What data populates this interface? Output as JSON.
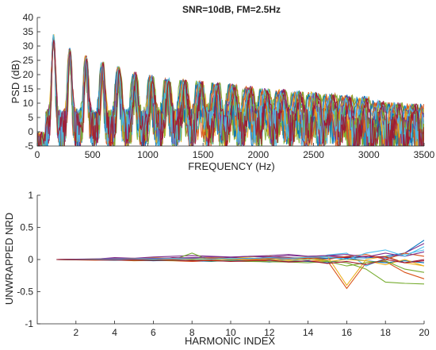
{
  "palette": [
    "#0072BD",
    "#D95319",
    "#EDB120",
    "#7E2F8E",
    "#77AC30",
    "#4DBEEE",
    "#A2142F"
  ],
  "chart_data": [
    {
      "type": "line",
      "title": "SNR=10dB, FM=2.5Hz",
      "xlabel": "FREQUENCY (Hz)",
      "ylabel": "PSD (dB)",
      "xlim": [
        0,
        3500
      ],
      "ylim": [
        -5,
        40
      ],
      "xticks": [
        0,
        500,
        1000,
        1500,
        2000,
        2500,
        3000,
        3500
      ],
      "yticks": [
        -5,
        0,
        5,
        10,
        15,
        20,
        25,
        30,
        35,
        40
      ],
      "grid": false,
      "legend": "none",
      "series_count": 21,
      "harmonic_f0": 147,
      "harmonic_peaks": [
        {
          "x": 147,
          "y": 34.5
        },
        {
          "x": 294,
          "y": 29.5
        },
        {
          "x": 441,
          "y": 27
        },
        {
          "x": 588,
          "y": 24.5
        },
        {
          "x": 735,
          "y": 23
        },
        {
          "x": 882,
          "y": 21
        },
        {
          "x": 1029,
          "y": 20
        },
        {
          "x": 1176,
          "y": 19
        },
        {
          "x": 1323,
          "y": 18.5
        },
        {
          "x": 1470,
          "y": 18
        },
        {
          "x": 1617,
          "y": 17.5
        },
        {
          "x": 1764,
          "y": 17
        },
        {
          "x": 1911,
          "y": 16
        },
        {
          "x": 2058,
          "y": 15.5
        },
        {
          "x": 2205,
          "y": 15
        },
        {
          "x": 2352,
          "y": 14.5
        },
        {
          "x": 2499,
          "y": 14
        },
        {
          "x": 2646,
          "y": 13.5
        },
        {
          "x": 2793,
          "y": 13
        },
        {
          "x": 2940,
          "y": 12.5
        },
        {
          "x": 3087,
          "y": 11
        },
        {
          "x": 3234,
          "y": 10.5
        },
        {
          "x": 3381,
          "y": 10
        }
      ],
      "noise_floor": [
        -5,
        8
      ]
    },
    {
      "type": "line",
      "title": "",
      "xlabel": "HARMONIC INDEX",
      "ylabel": "UNWRAPPED NRD",
      "xlim": [
        0,
        20
      ],
      "ylim": [
        -1,
        1
      ],
      "xticks": [
        2,
        4,
        6,
        8,
        10,
        12,
        14,
        16,
        18,
        20
      ],
      "yticks": [
        -1,
        -0.5,
        0,
        0.5,
        1
      ],
      "grid": false,
      "legend": "none",
      "x": [
        1,
        2,
        3,
        4,
        5,
        6,
        7,
        8,
        9,
        10,
        11,
        12,
        13,
        14,
        15,
        16,
        17,
        18,
        19,
        20
      ],
      "series": [
        {
          "values": [
            0,
            0.003,
            0.008,
            0.01,
            0.015,
            0.02,
            0.018,
            0.025,
            0.02,
            0.015,
            0.02,
            0.01,
            0.02,
            0.015,
            0.02,
            0.03,
            0.025,
            0.05,
            0.1,
            0.3
          ]
        },
        {
          "values": [
            0,
            -0.005,
            -0.01,
            -0.008,
            -0.02,
            -0.015,
            -0.02,
            -0.03,
            -0.02,
            -0.025,
            -0.03,
            -0.02,
            -0.03,
            -0.025,
            -0.02,
            -0.45,
            -0.05,
            -0.03,
            -0.2,
            -0.3
          ]
        },
        {
          "values": [
            0,
            0.002,
            0.01,
            0.02,
            0.01,
            0.03,
            0.02,
            0.01,
            0.03,
            0.02,
            0.04,
            0.05,
            0.02,
            0.04,
            0.05,
            -0.4,
            0.0,
            0.05,
            -0.05,
            -0.1
          ]
        },
        {
          "values": [
            0,
            0.004,
            0.005,
            0.03,
            0.02,
            0.04,
            0.05,
            0.06,
            0.05,
            0.04,
            0.05,
            0.06,
            0.08,
            0.05,
            0.06,
            0.04,
            0.05,
            0.02,
            0.1,
            0.25
          ]
        },
        {
          "values": [
            0,
            -0.002,
            0.002,
            -0.01,
            0.01,
            0.0,
            -0.01,
            0.1,
            -0.02,
            0.02,
            -0.01,
            0.02,
            0.0,
            0.03,
            -0.02,
            -0.05,
            -0.15,
            -0.35,
            -0.37,
            -0.38
          ]
        },
        {
          "values": [
            0,
            0.001,
            -0.003,
            0.005,
            -0.005,
            0.01,
            0.0,
            -0.02,
            0.01,
            0.0,
            0.02,
            -0.02,
            0.01,
            -0.01,
            0.07,
            0.1,
            -0.1,
            0.02,
            0.08,
            0.15
          ]
        },
        {
          "values": [
            0,
            0.003,
            0.0,
            0.01,
            0.02,
            -0.01,
            0.03,
            0.02,
            0.0,
            0.03,
            0.01,
            0.04,
            0.03,
            0.02,
            0.04,
            0.03,
            0.05,
            0.04,
            -0.05,
            0.0
          ]
        },
        {
          "values": [
            0,
            -0.004,
            -0.006,
            -0.01,
            -0.005,
            -0.02,
            -0.01,
            -0.015,
            -0.03,
            -0.01,
            -0.02,
            -0.04,
            -0.02,
            -0.03,
            -0.05,
            0.02,
            -0.02,
            -0.05,
            -0.02,
            -0.05
          ]
        },
        {
          "values": [
            0,
            0.002,
            0.004,
            0.0,
            0.008,
            0.01,
            0.02,
            0.0,
            0.02,
            0.01,
            0.0,
            0.02,
            0.01,
            0.03,
            0.0,
            0.05,
            0.08,
            0.0,
            0.1,
            0.05
          ]
        },
        {
          "values": [
            0,
            -0.001,
            0.001,
            -0.005,
            0.0,
            -0.01,
            0.005,
            0.01,
            -0.01,
            0.005,
            -0.01,
            0.0,
            -0.02,
            0.01,
            -0.03,
            0.0,
            -0.02,
            -0.08,
            0.0,
            -0.1
          ]
        },
        {
          "values": [
            0,
            0.005,
            0.01,
            0.015,
            0.01,
            0.02,
            0.025,
            0.03,
            0.04,
            0.035,
            0.05,
            0.04,
            0.06,
            0.05,
            0.06,
            0.08,
            0.04,
            0.1,
            0.05,
            0.12
          ]
        },
        {
          "values": [
            0,
            -0.003,
            -0.005,
            0.0,
            -0.01,
            -0.005,
            -0.015,
            -0.01,
            -0.025,
            -0.02,
            -0.03,
            -0.035,
            -0.04,
            -0.05,
            -0.03,
            -0.1,
            -0.05,
            -0.02,
            -0.15,
            -0.2
          ]
        },
        {
          "values": [
            0,
            0.001,
            0.006,
            0.004,
            0.012,
            0.008,
            0.015,
            0.012,
            0.008,
            0.02,
            0.015,
            0.03,
            0.02,
            0.035,
            0.04,
            0.0,
            0.1,
            0.15,
            0.05,
            0.2
          ]
        },
        {
          "values": [
            0,
            -0.002,
            -0.003,
            -0.006,
            -0.004,
            -0.012,
            -0.006,
            -0.02,
            -0.015,
            -0.03,
            -0.02,
            -0.01,
            -0.04,
            -0.02,
            -0.06,
            -0.03,
            -0.08,
            0.0,
            -0.05,
            -0.02
          ]
        }
      ]
    }
  ]
}
